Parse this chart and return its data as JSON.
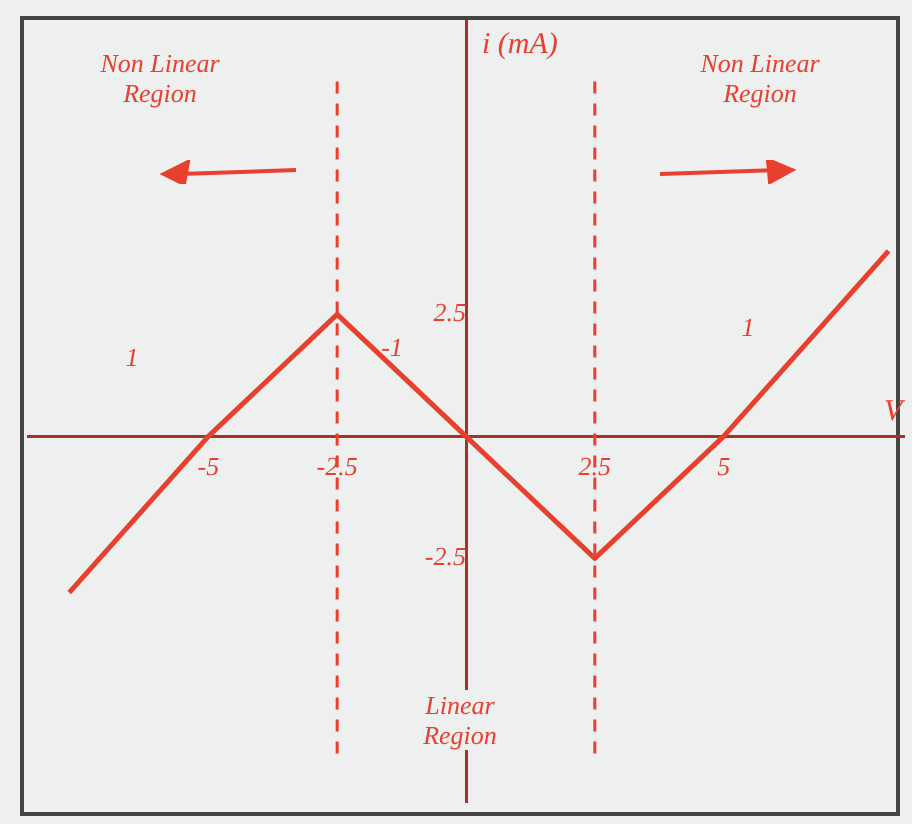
{
  "chart_data": {
    "type": "line",
    "xlabel": "V",
    "ylabel": "i (mA)",
    "x": [
      -7.7,
      -5,
      -2.5,
      0,
      2.5,
      5,
      8.2
    ],
    "series": [
      {
        "color": "#e8402f",
        "values": [
          -3.2,
          0,
          2.5,
          0,
          -2.5,
          0,
          3.8
        ]
      }
    ],
    "xlim": [
      -8.5,
      8.5
    ],
    "ylim": [
      -7.5,
      8.5
    ],
    "xticks": [
      -5,
      -2.5,
      2.5,
      5
    ],
    "yticks": [
      -2.5,
      2.5
    ],
    "grid": false,
    "legend": false,
    "marker": "none",
    "line_style": "solid",
    "ref_lines": [
      {
        "axis": "x",
        "value": -2.5,
        "line_style": "dashed",
        "color": "#e8402f"
      },
      {
        "axis": "x",
        "value": 2.5,
        "line_style": "dashed",
        "color": "#e8402f"
      }
    ],
    "annotations": [
      "Non Linear Region",
      "Non Linear Region",
      "Linear Region",
      "1",
      "-1",
      "1"
    ]
  }
}
